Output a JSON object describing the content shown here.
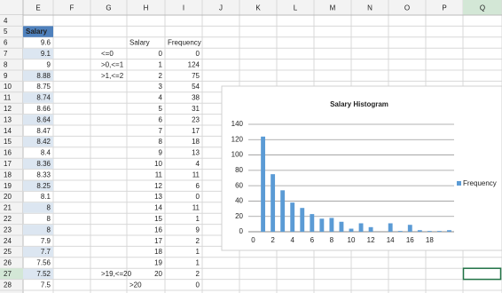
{
  "columns": [
    "E",
    "F",
    "G",
    "H",
    "I",
    "J",
    "K",
    "L",
    "M",
    "N",
    "O",
    "P",
    "Q"
  ],
  "rows": [
    {
      "num": 4
    },
    {
      "num": 5,
      "E": "Salary"
    },
    {
      "num": 6,
      "E": 9.6,
      "H": "Salary",
      "I": "Frequency"
    },
    {
      "num": 7,
      "E": 9.1,
      "G": "<=0",
      "H": 0,
      "I": 0
    },
    {
      "num": 8,
      "E": 9,
      "G": ">0,<=1",
      "H": 1,
      "I": 124
    },
    {
      "num": 9,
      "E": 8.88,
      "G": ">1,<=2",
      "H": 2,
      "I": 75
    },
    {
      "num": 10,
      "E": 8.75,
      "H": 3,
      "I": 54
    },
    {
      "num": 11,
      "E": 8.74,
      "H": 4,
      "I": 38
    },
    {
      "num": 12,
      "E": 8.66,
      "H": 5,
      "I": 31
    },
    {
      "num": 13,
      "E": 8.64,
      "H": 6,
      "I": 23
    },
    {
      "num": 14,
      "E": 8.47,
      "H": 7,
      "I": 17
    },
    {
      "num": 15,
      "E": 8.42,
      "H": 8,
      "I": 18
    },
    {
      "num": 16,
      "E": 8.4,
      "H": 9,
      "I": 13
    },
    {
      "num": 17,
      "E": 8.36,
      "H": 10,
      "I": 4
    },
    {
      "num": 18,
      "E": 8.33,
      "H": 11,
      "I": 11
    },
    {
      "num": 19,
      "E": 8.25,
      "H": 12,
      "I": 6
    },
    {
      "num": 20,
      "E": 8.1,
      "H": 13,
      "I": 0
    },
    {
      "num": 21,
      "E": 8,
      "H": 14,
      "I": 11
    },
    {
      "num": 22,
      "E": 8,
      "H": 15,
      "I": 1
    },
    {
      "num": 23,
      "E": 8,
      "H": 16,
      "I": 9
    },
    {
      "num": 24,
      "E": 7.9,
      "H": 17,
      "I": 2
    },
    {
      "num": 25,
      "E": 7.7,
      "H": 18,
      "I": 1
    },
    {
      "num": 26,
      "E": 7.56,
      "H": 19,
      "I": 1
    },
    {
      "num": 27,
      "E": 7.52,
      "G": ">19,<=20",
      "H": 20,
      "I": 2
    },
    {
      "num": 28,
      "E": 7.5,
      "H": ">20",
      "I": 0
    }
  ],
  "chart": {
    "title": "Salary Histogram",
    "legend": "Frequency",
    "color": "#5b9bd5",
    "ylim": [
      0,
      140
    ],
    "yticks": [
      0,
      20,
      40,
      60,
      80,
      100,
      120,
      140
    ],
    "xticks": [
      0,
      2,
      4,
      6,
      8,
      10,
      12,
      14,
      16,
      18
    ],
    "grid": true
  }
}
